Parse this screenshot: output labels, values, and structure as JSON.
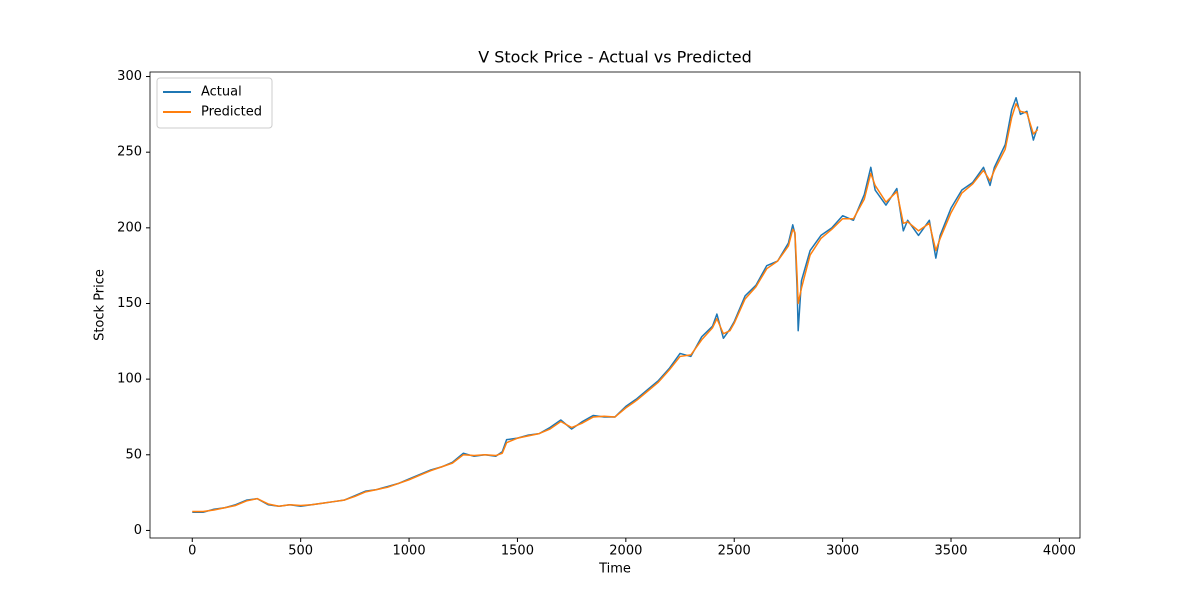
{
  "chart_data": {
    "type": "line",
    "title": "V Stock Price - Actual vs Predicted",
    "x_label": "Time",
    "y_label": "Stock Price",
    "x": [
      0,
      50,
      100,
      150,
      200,
      250,
      300,
      350,
      400,
      450,
      500,
      550,
      600,
      650,
      700,
      750,
      800,
      850,
      900,
      950,
      1000,
      1050,
      1100,
      1150,
      1200,
      1250,
      1300,
      1350,
      1400,
      1430,
      1450,
      1500,
      1550,
      1600,
      1650,
      1700,
      1750,
      1800,
      1850,
      1900,
      1950,
      2000,
      2050,
      2100,
      2150,
      2200,
      2250,
      2300,
      2350,
      2400,
      2420,
      2450,
      2480,
      2500,
      2550,
      2600,
      2650,
      2700,
      2750,
      2770,
      2780,
      2790,
      2795,
      2810,
      2850,
      2900,
      2950,
      3000,
      3050,
      3100,
      3130,
      3150,
      3200,
      3250,
      3280,
      3300,
      3350,
      3400,
      3430,
      3450,
      3500,
      3550,
      3600,
      3650,
      3680,
      3700,
      3750,
      3780,
      3800,
      3820,
      3850,
      3880,
      3900
    ],
    "series": [
      {
        "name": "Actual",
        "color": "#1f77b4",
        "values": [
          12,
          12,
          14,
          15,
          17,
          20,
          21,
          17,
          16,
          17,
          16,
          17,
          18,
          19,
          20,
          23,
          26,
          27,
          29,
          31,
          34,
          37,
          40,
          42,
          45,
          51,
          49,
          50,
          49,
          52,
          60,
          61,
          63,
          64,
          68,
          73,
          67,
          72,
          76,
          75,
          75,
          82,
          87,
          93,
          99,
          107,
          117,
          115,
          128,
          135,
          143,
          127,
          133,
          138,
          155,
          162,
          175,
          178,
          190,
          202,
          196,
          160,
          132,
          165,
          185,
          195,
          200,
          208,
          205,
          222,
          240,
          225,
          215,
          226,
          198,
          205,
          195,
          205,
          180,
          195,
          213,
          225,
          230,
          240,
          228,
          240,
          255,
          278,
          286,
          275,
          277,
          258,
          267
        ]
      },
      {
        "name": "Predicted",
        "color": "#ff7f0e",
        "values": [
          12.5,
          12.5,
          13.5,
          15,
          16.5,
          19.5,
          21,
          17.5,
          16,
          17,
          16.5,
          17,
          18,
          19,
          20,
          22.5,
          25.5,
          27,
          28.5,
          31,
          33.5,
          36.5,
          39.5,
          42,
          44.5,
          50,
          49.5,
          50,
          49.5,
          51,
          58,
          61,
          62.5,
          64,
          67,
          72,
          68,
          71,
          75,
          75.5,
          75,
          81,
          86,
          92,
          98,
          106,
          115,
          116,
          126,
          134,
          140,
          130,
          132,
          137,
          153,
          161,
          173,
          178,
          188,
          199,
          197,
          168,
          150,
          160,
          182,
          193,
          199,
          206,
          206,
          219,
          236,
          228,
          217,
          224,
          203,
          204,
          198,
          203,
          185,
          193,
          210,
          223,
          229,
          238,
          231,
          238,
          252,
          273,
          282,
          277,
          276,
          262,
          265
        ]
      }
    ],
    "xlim": [
      -195,
      4095
    ],
    "ylim": [
      -5,
      303
    ],
    "xticks": [
      0,
      500,
      1000,
      1500,
      2000,
      2500,
      3000,
      3500,
      4000
    ],
    "yticks": [
      0,
      50,
      100,
      150,
      200,
      250,
      300
    ],
    "grid": false,
    "legend": "upper-left"
  }
}
